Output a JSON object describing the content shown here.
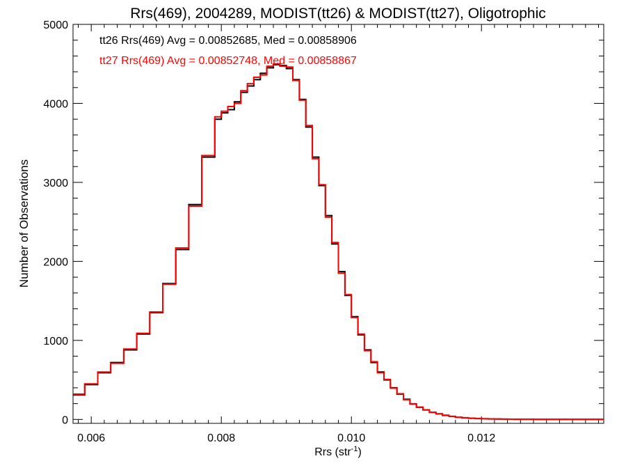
{
  "chart_data": {
    "type": "line",
    "title": "Rrs(469), 2004289, MODIST(tt26) & MODIST(tt27), Oligotrophic",
    "xlabel": "Rrs (str",
    "xlabel_sup": "-1",
    "xlabel_close": ")",
    "ylabel": "Number of Observations",
    "xlim": [
      0.00572,
      0.01388
    ],
    "ylim": [
      -50,
      5000
    ],
    "xticks": [
      0.006,
      0.008,
      0.01,
      0.012
    ],
    "xtick_labels": [
      "0.006",
      "0.008",
      "0.010",
      "0.012"
    ],
    "yticks": [
      0,
      1000,
      2000,
      3000,
      4000,
      5000
    ],
    "ytick_labels": [
      "0",
      "1000",
      "2000",
      "3000",
      "4000",
      "5000"
    ],
    "grid": false,
    "legend_position": "top-left",
    "annotations": [
      {
        "text": "tt26 Rrs(469) Avg = 0.00852685, Med = 0.00858906",
        "color": "#000000"
      },
      {
        "text": "tt27 Rrs(469) Avg = 0.00852748, Med = 0.00858867",
        "color": "#ff0000"
      }
    ],
    "series": [
      {
        "color": "#000000",
        "x": [
          0.0057,
          0.0059,
          0.0061,
          0.0063,
          0.0065,
          0.0067,
          0.0069,
          0.0071,
          0.0073,
          0.0075,
          0.0077,
          0.0079,
          0.008,
          0.0081,
          0.0082,
          0.0083,
          0.0084,
          0.0085,
          0.0086,
          0.0087,
          0.0088,
          0.0089,
          0.009,
          0.0091,
          0.0092,
          0.0093,
          0.0094,
          0.0095,
          0.0096,
          0.0097,
          0.0098,
          0.0099,
          0.01,
          0.0101,
          0.0102,
          0.0103,
          0.0104,
          0.0105,
          0.0106,
          0.0107,
          0.0108,
          0.0109,
          0.011,
          0.0111,
          0.0112,
          0.0113,
          0.0114,
          0.0115,
          0.0116,
          0.0117,
          0.0118,
          0.0119,
          0.012,
          0.0121,
          0.0122,
          0.0123,
          0.0124,
          0.0125,
          0.0126,
          0.0127,
          0.0128,
          0.013,
          0.0132,
          0.0134,
          0.0136,
          0.0138
        ],
        "y": [
          310,
          440,
          590,
          720,
          880,
          1080,
          1350,
          1720,
          2150,
          2720,
          3320,
          3800,
          3880,
          3920,
          4020,
          4140,
          4220,
          4300,
          4380,
          4450,
          4490,
          4480,
          4440,
          4300,
          4050,
          3700,
          3320,
          2960,
          2580,
          2220,
          1870,
          1570,
          1300,
          1070,
          880,
          720,
          600,
          500,
          400,
          320,
          255,
          195,
          155,
          120,
          90,
          70,
          52,
          38,
          27,
          20,
          15,
          11,
          8,
          6,
          5,
          4,
          3,
          2,
          2,
          2,
          1,
          1,
          1,
          1,
          0,
          0
        ]
      },
      {
        "color": "#ff0000",
        "x": [
          0.0057,
          0.0059,
          0.0061,
          0.0063,
          0.0065,
          0.0067,
          0.0069,
          0.0071,
          0.0073,
          0.0075,
          0.0077,
          0.0079,
          0.008,
          0.0081,
          0.0082,
          0.0083,
          0.0084,
          0.0085,
          0.0086,
          0.0087,
          0.0088,
          0.0089,
          0.009,
          0.0091,
          0.0092,
          0.0093,
          0.0094,
          0.0095,
          0.0096,
          0.0097,
          0.0098,
          0.0099,
          0.01,
          0.0101,
          0.0102,
          0.0103,
          0.0104,
          0.0105,
          0.0106,
          0.0107,
          0.0108,
          0.0109,
          0.011,
          0.0111,
          0.0112,
          0.0113,
          0.0114,
          0.0115,
          0.0116,
          0.0117,
          0.0118,
          0.0119,
          0.012,
          0.0121,
          0.0122,
          0.0123,
          0.0124,
          0.0125,
          0.0126,
          0.0127,
          0.0128,
          0.013,
          0.0132,
          0.0134,
          0.0136,
          0.0138
        ],
        "y": [
          320,
          450,
          600,
          710,
          890,
          1090,
          1360,
          1710,
          2170,
          2700,
          3340,
          3830,
          3900,
          3960,
          4000,
          4160,
          4250,
          4330,
          4360,
          4470,
          4500,
          4470,
          4460,
          4290,
          4040,
          3720,
          3300,
          2970,
          2560,
          2240,
          1850,
          1580,
          1290,
          1080,
          870,
          730,
          590,
          505,
          395,
          325,
          250,
          198,
          152,
          122,
          88,
          72,
          50,
          39,
          26,
          21,
          14,
          11,
          8,
          6,
          5,
          4,
          3,
          2,
          2,
          2,
          1,
          1,
          1,
          1,
          0,
          0
        ]
      }
    ]
  }
}
